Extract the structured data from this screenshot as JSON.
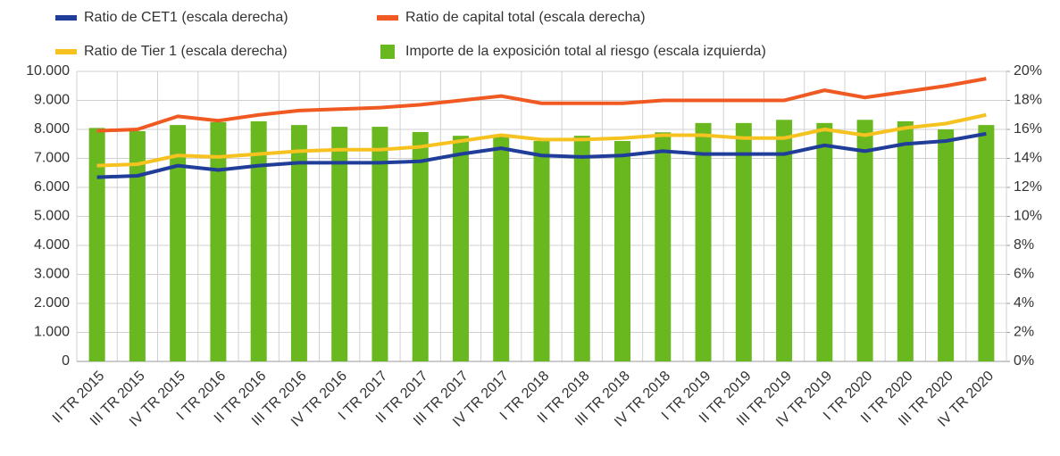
{
  "chart_data": {
    "type": "combo",
    "categories": [
      "II TR 2015",
      "III TR 2015",
      "IV TR 2015",
      "I TR 2016",
      "II TR 2016",
      "III TR 2016",
      "IV TR 2016",
      "I TR 2017",
      "II TR 2017",
      "III TR 2017",
      "IV TR 2017",
      "I TR 2018",
      "II TR 2018",
      "III TR 2018",
      "IV TR 2018",
      "I TR 2019",
      "II TR 2019",
      "III TR 2019",
      "IV TR 2019",
      "I TR 2020",
      "II TR 2020",
      "III TR 2020",
      "IV TR 2020"
    ],
    "series": [
      {
        "name": "Ratio de CET1 (escala derecha)",
        "type": "line",
        "axis": "y2",
        "color": "#1f3d99",
        "values": [
          12.7,
          12.8,
          13.5,
          13.2,
          13.5,
          13.7,
          13.7,
          13.7,
          13.8,
          14.3,
          14.7,
          14.2,
          14.1,
          14.2,
          14.5,
          14.3,
          14.3,
          14.3,
          14.9,
          14.5,
          15.0,
          15.2,
          15.7
        ]
      },
      {
        "name": "Ratio de capital total (escala derecha)",
        "type": "line",
        "axis": "y2",
        "color": "#f05a22",
        "values": [
          15.9,
          16.0,
          16.9,
          16.6,
          17.0,
          17.3,
          17.4,
          17.5,
          17.7,
          18.0,
          18.3,
          17.8,
          17.8,
          17.8,
          18.0,
          18.0,
          18.0,
          18.0,
          18.7,
          18.2,
          18.6,
          19.0,
          19.5
        ]
      },
      {
        "name": "Ratio de Tier 1 (escala derecha)",
        "type": "line",
        "axis": "y2",
        "color": "#f5c220",
        "values": [
          13.5,
          13.6,
          14.2,
          14.1,
          14.3,
          14.5,
          14.6,
          14.6,
          14.8,
          15.2,
          15.6,
          15.3,
          15.3,
          15.4,
          15.6,
          15.6,
          15.4,
          15.4,
          16.0,
          15.6,
          16.1,
          16.4,
          17.0
        ]
      },
      {
        "name": "Importe de la exposición total al riesgo (escala izquierda)",
        "type": "bar",
        "axis": "y",
        "color": "#6ab820",
        "values": [
          8050,
          7940,
          8150,
          8250,
          8280,
          8150,
          8090,
          8090,
          7910,
          7780,
          7750,
          7600,
          7780,
          7600,
          7900,
          8220,
          8220,
          8330,
          8220,
          8330,
          8280,
          8000,
          8150
        ]
      }
    ],
    "ylim": [
      0,
      10000
    ],
    "yticks": [
      0,
      {
        "value": 1000,
        "label": "1.000"
      },
      {
        "value": 2000,
        "label": "2.000"
      },
      {
        "value": 3000,
        "label": "3.000"
      },
      {
        "value": 4000,
        "label": "4.000"
      },
      {
        "value": 5000,
        "label": "5.000"
      },
      {
        "value": 6000,
        "label": "6.000"
      },
      {
        "value": 7000,
        "label": "7.000"
      },
      {
        "value": 8000,
        "label": "8.000"
      },
      {
        "value": 9000,
        "label": "9.000"
      },
      {
        "value": 10000,
        "label": "10.000"
      }
    ],
    "y2lim": [
      0,
      20
    ],
    "y2ticks": [
      {
        "value": 0,
        "label": "0%"
      },
      {
        "value": 2,
        "label": "2%"
      },
      {
        "value": 4,
        "label": "4%"
      },
      {
        "value": 6,
        "label": "6%"
      },
      {
        "value": 8,
        "label": "8%"
      },
      {
        "value": 10,
        "label": "10%"
      },
      {
        "value": 12,
        "label": "12%"
      },
      {
        "value": 14,
        "label": "14%"
      },
      {
        "value": 16,
        "label": "16%"
      },
      {
        "value": 18,
        "label": "18%"
      },
      {
        "value": 20,
        "label": "20%"
      }
    ],
    "grid": true
  }
}
